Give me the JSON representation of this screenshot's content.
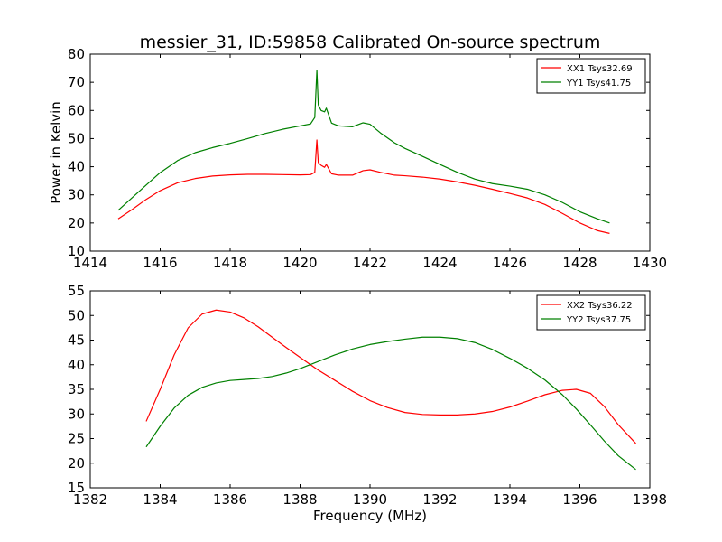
{
  "chart_data": [
    {
      "type": "line",
      "title": "messier_31, ID:59858 Calibrated On-source spectrum",
      "xlabel": "",
      "ylabel": "Power in Kelvin",
      "xlim": [
        1414,
        1430
      ],
      "ylim": [
        10,
        80
      ],
      "xticks": [
        1414,
        1416,
        1418,
        1420,
        1422,
        1424,
        1426,
        1428,
        1430
      ],
      "yticks": [
        10,
        20,
        30,
        40,
        50,
        60,
        70,
        80
      ],
      "legend_position": "top-right",
      "series": [
        {
          "name": "XX1 Tsys32.69",
          "color": "#ff0000",
          "x": [
            1414.8,
            1415.2,
            1415.6,
            1416.0,
            1416.5,
            1417.0,
            1417.5,
            1418.0,
            1418.5,
            1419.0,
            1419.5,
            1420.0,
            1420.3,
            1420.42,
            1420.48,
            1420.52,
            1420.6,
            1420.7,
            1420.75,
            1420.9,
            1421.1,
            1421.5,
            1421.8,
            1422.0,
            1422.3,
            1422.7,
            1423.0,
            1423.5,
            1424.0,
            1424.5,
            1425.0,
            1425.5,
            1426.0,
            1426.5,
            1427.0,
            1427.5,
            1428.0,
            1428.5,
            1428.85
          ],
          "y": [
            21.5,
            24.8,
            28.4,
            31.5,
            34.3,
            35.8,
            36.7,
            37.1,
            37.3,
            37.3,
            37.2,
            37.1,
            37.2,
            38.0,
            49.5,
            41.5,
            40.5,
            39.8,
            40.8,
            37.5,
            37.0,
            37.0,
            38.6,
            38.9,
            38.0,
            37.0,
            36.8,
            36.3,
            35.6,
            34.6,
            33.4,
            32.0,
            30.5,
            28.9,
            26.6,
            23.4,
            20.0,
            17.3,
            16.3
          ]
        },
        {
          "name": "YY1 Tsys41.75",
          "color": "#008000",
          "x": [
            1414.8,
            1415.2,
            1415.6,
            1416.0,
            1416.5,
            1417.0,
            1417.5,
            1418.0,
            1418.5,
            1419.0,
            1419.5,
            1420.0,
            1420.3,
            1420.42,
            1420.48,
            1420.52,
            1420.6,
            1420.7,
            1420.75,
            1420.9,
            1421.1,
            1421.5,
            1421.8,
            1422.0,
            1422.3,
            1422.7,
            1423.0,
            1423.5,
            1424.0,
            1424.5,
            1425.0,
            1425.5,
            1426.0,
            1426.5,
            1427.0,
            1427.5,
            1428.0,
            1428.5,
            1428.85
          ],
          "y": [
            24.5,
            29.0,
            33.5,
            37.9,
            42.2,
            45.0,
            46.8,
            48.3,
            50.0,
            51.8,
            53.3,
            54.5,
            55.2,
            57.5,
            74.3,
            62.0,
            60.0,
            59.5,
            60.8,
            55.5,
            54.5,
            54.2,
            55.6,
            55.1,
            52.0,
            48.5,
            46.5,
            43.7,
            40.8,
            38.0,
            35.6,
            34.0,
            33.1,
            32.0,
            30.0,
            27.3,
            24.0,
            21.5,
            20.0
          ]
        }
      ]
    },
    {
      "type": "line",
      "title": "",
      "xlabel": "Frequency (MHz)",
      "ylabel": "",
      "xlim": [
        1382,
        1398
      ],
      "ylim": [
        15,
        55
      ],
      "xticks": [
        1382,
        1384,
        1386,
        1388,
        1390,
        1392,
        1394,
        1396,
        1398
      ],
      "yticks": [
        15,
        20,
        25,
        30,
        35,
        40,
        45,
        50,
        55
      ],
      "legend_position": "top-right",
      "series": [
        {
          "name": "XX2 Tsys36.22",
          "color": "#ff0000",
          "x": [
            1383.6,
            1384.0,
            1384.4,
            1384.8,
            1385.2,
            1385.6,
            1386.0,
            1386.4,
            1386.8,
            1387.2,
            1387.6,
            1388.0,
            1388.5,
            1389.0,
            1389.5,
            1390.0,
            1390.5,
            1391.0,
            1391.5,
            1392.0,
            1392.5,
            1393.0,
            1393.5,
            1394.0,
            1394.5,
            1395.0,
            1395.5,
            1395.9,
            1396.3,
            1396.7,
            1397.1,
            1397.6
          ],
          "y": [
            28.5,
            35.0,
            42.0,
            47.5,
            50.3,
            51.1,
            50.7,
            49.5,
            47.7,
            45.6,
            43.5,
            41.5,
            39.0,
            36.8,
            34.6,
            32.7,
            31.3,
            30.3,
            29.9,
            29.8,
            29.8,
            30.0,
            30.5,
            31.4,
            32.6,
            33.9,
            34.8,
            35.0,
            34.2,
            31.5,
            27.8,
            24.0
          ]
        },
        {
          "name": "YY2 Tsys37.75",
          "color": "#008000",
          "x": [
            1383.6,
            1384.0,
            1384.4,
            1384.8,
            1385.2,
            1385.6,
            1386.0,
            1386.4,
            1386.8,
            1387.2,
            1387.6,
            1388.0,
            1388.5,
            1389.0,
            1389.5,
            1390.0,
            1390.5,
            1391.0,
            1391.5,
            1392.0,
            1392.5,
            1393.0,
            1393.5,
            1394.0,
            1394.5,
            1395.0,
            1395.5,
            1395.9,
            1396.3,
            1396.7,
            1397.1,
            1397.6
          ],
          "y": [
            23.3,
            27.5,
            31.2,
            33.8,
            35.4,
            36.3,
            36.8,
            37.0,
            37.2,
            37.6,
            38.3,
            39.2,
            40.6,
            42.0,
            43.2,
            44.1,
            44.7,
            45.2,
            45.6,
            45.6,
            45.3,
            44.5,
            43.1,
            41.3,
            39.3,
            36.9,
            33.9,
            31.0,
            27.8,
            24.5,
            21.5,
            18.7
          ]
        }
      ]
    }
  ]
}
